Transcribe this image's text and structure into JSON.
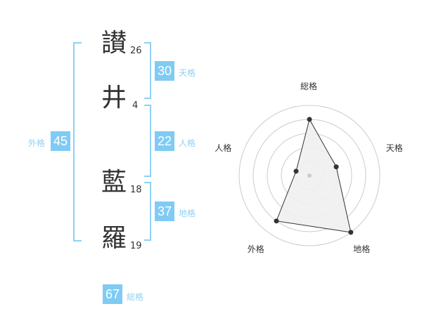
{
  "name": [
    {
      "char": "讃",
      "strokes": "26"
    },
    {
      "char": "井",
      "strokes": "4"
    },
    {
      "char": "藍",
      "strokes": "18"
    },
    {
      "char": "羅",
      "strokes": "19"
    }
  ],
  "kaku": {
    "tenkaku": {
      "value": "30",
      "label": "天格"
    },
    "jinkaku": {
      "value": "22",
      "label": "人格"
    },
    "chikaku": {
      "value": "37",
      "label": "地格"
    },
    "gaikaku": {
      "value": "45",
      "label": "外格"
    },
    "soukaku": {
      "value": "67",
      "label": "総格"
    }
  },
  "colors": {
    "accent": "#7fcbf5",
    "label": "#8fd0f5"
  },
  "chart_data": {
    "type": "radar",
    "axes": [
      "総格",
      "天格",
      "地格",
      "外格",
      "人格"
    ],
    "values": [
      4,
      2,
      5,
      4,
      1
    ],
    "range": [
      0,
      5
    ],
    "rings": 5
  }
}
